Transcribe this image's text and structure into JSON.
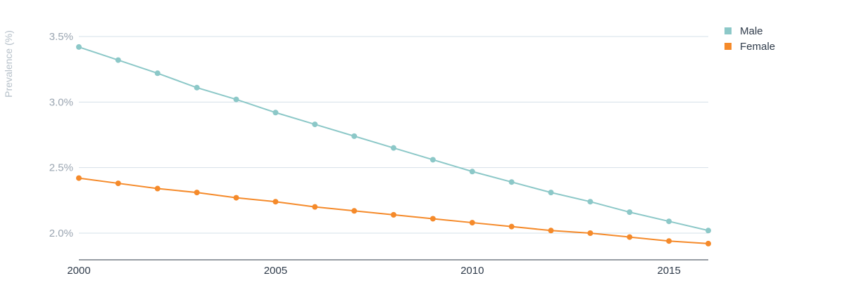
{
  "chart_data": {
    "type": "line",
    "title": "",
    "xlabel": "",
    "ylabel": "Prevalence (%)",
    "x": [
      2000,
      2001,
      2002,
      2003,
      2004,
      2005,
      2006,
      2007,
      2008,
      2009,
      2010,
      2011,
      2012,
      2013,
      2014,
      2015,
      2016
    ],
    "x_ticks": [
      "2000",
      "2005",
      "2010",
      "2015"
    ],
    "x_tick_values": [
      2000,
      2005,
      2010,
      2015
    ],
    "y_ticks": [
      "2.0%",
      "2.5%",
      "3.0%",
      "3.5%"
    ],
    "y_tick_values": [
      2.0,
      2.5,
      3.0,
      3.5
    ],
    "xlim": [
      2000,
      2016
    ],
    "ylim": [
      1.8,
      3.6
    ],
    "grid": "horizontal",
    "legend_position": "top-right",
    "series": [
      {
        "name": "Male",
        "color": "#8cc8c8",
        "values": [
          3.42,
          3.32,
          3.22,
          3.11,
          3.02,
          2.92,
          2.83,
          2.74,
          2.65,
          2.56,
          2.47,
          2.39,
          2.31,
          2.24,
          2.16,
          2.09,
          2.02
        ]
      },
      {
        "name": "Female",
        "color": "#f58a2a",
        "values": [
          2.42,
          2.38,
          2.34,
          2.31,
          2.27,
          2.24,
          2.2,
          2.17,
          2.14,
          2.11,
          2.08,
          2.05,
          2.02,
          2.0,
          1.97,
          1.94,
          1.92
        ]
      }
    ]
  }
}
